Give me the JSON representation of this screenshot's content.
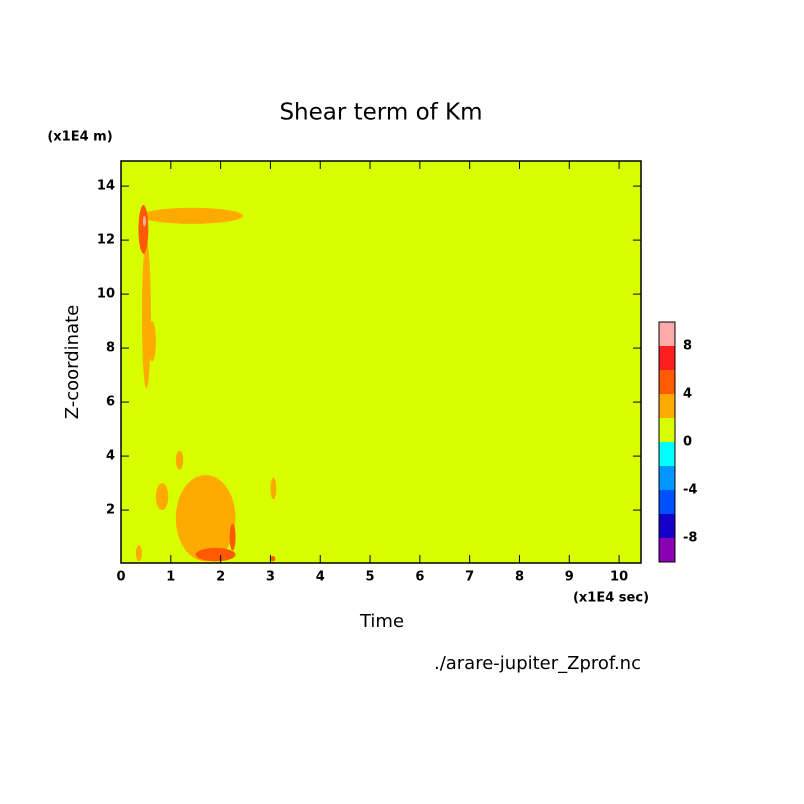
{
  "chart_data": {
    "type": "contour",
    "title": "Shear term of Km",
    "y_unit": "(x1E4 m)",
    "y_label": "Z-coordinate",
    "x_unit": "(x1E4 sec)",
    "x_label": "Time",
    "source": "./arare-jupiter_Zprof.nc",
    "xlim": [
      0,
      10.44
    ],
    "ylim": [
      0.04,
      14.93
    ],
    "xticks": [
      0,
      1,
      2,
      3,
      4,
      5,
      6,
      7,
      8,
      9,
      10
    ],
    "yticks": [
      2,
      4,
      6,
      8,
      10,
      12,
      14
    ],
    "levels": [
      -10,
      -8,
      -6,
      -4,
      -2,
      0,
      2,
      4,
      6,
      8,
      10
    ],
    "colors": [
      "#8c00b4",
      "#1400c8",
      "#0050ff",
      "#0096ff",
      "#00ffff",
      "#d7ff00",
      "#ffaa00",
      "#ff5a00",
      "#ff1e1e",
      "#ffaaaa"
    ],
    "colorbar_ticks": [
      -8,
      -4,
      0,
      4,
      8
    ],
    "background": 1,
    "regions": [
      {
        "x": [
          1.1,
          2.3
        ],
        "y": [
          0.1,
          3.3
        ],
        "value": 3
      },
      {
        "x": [
          0.7,
          0.95
        ],
        "y": [
          2.0,
          3.0
        ],
        "value": 3
      },
      {
        "x": [
          3.0,
          3.12
        ],
        "y": [
          2.4,
          3.2
        ],
        "value": 3
      },
      {
        "x": [
          0.42,
          0.6
        ],
        "y": [
          6.5,
          12.0
        ],
        "value": 3
      },
      {
        "x": [
          0.4,
          2.45
        ],
        "y": [
          12.6,
          13.2
        ],
        "value": 3
      },
      {
        "x": [
          0.55,
          0.7
        ],
        "y": [
          7.5,
          9.0
        ],
        "value": 3
      },
      {
        "x": [
          1.1,
          1.25
        ],
        "y": [
          3.5,
          4.2
        ],
        "value": 3
      },
      {
        "x": [
          0.3,
          0.42
        ],
        "y": [
          0.1,
          0.7
        ],
        "value": 3
      },
      {
        "x": [
          0.35,
          0.55
        ],
        "y": [
          11.5,
          13.3
        ],
        "value": 5
      },
      {
        "x": [
          1.5,
          2.3
        ],
        "y": [
          0.1,
          0.6
        ],
        "value": 5
      },
      {
        "x": [
          2.18,
          2.3
        ],
        "y": [
          0.5,
          1.5
        ],
        "value": 5
      },
      {
        "x": [
          3.0,
          3.1
        ],
        "y": [
          0.1,
          0.3
        ],
        "value": 5
      },
      {
        "x": [
          0.44,
          0.5
        ],
        "y": [
          12.5,
          12.9
        ],
        "value": 9
      }
    ]
  }
}
